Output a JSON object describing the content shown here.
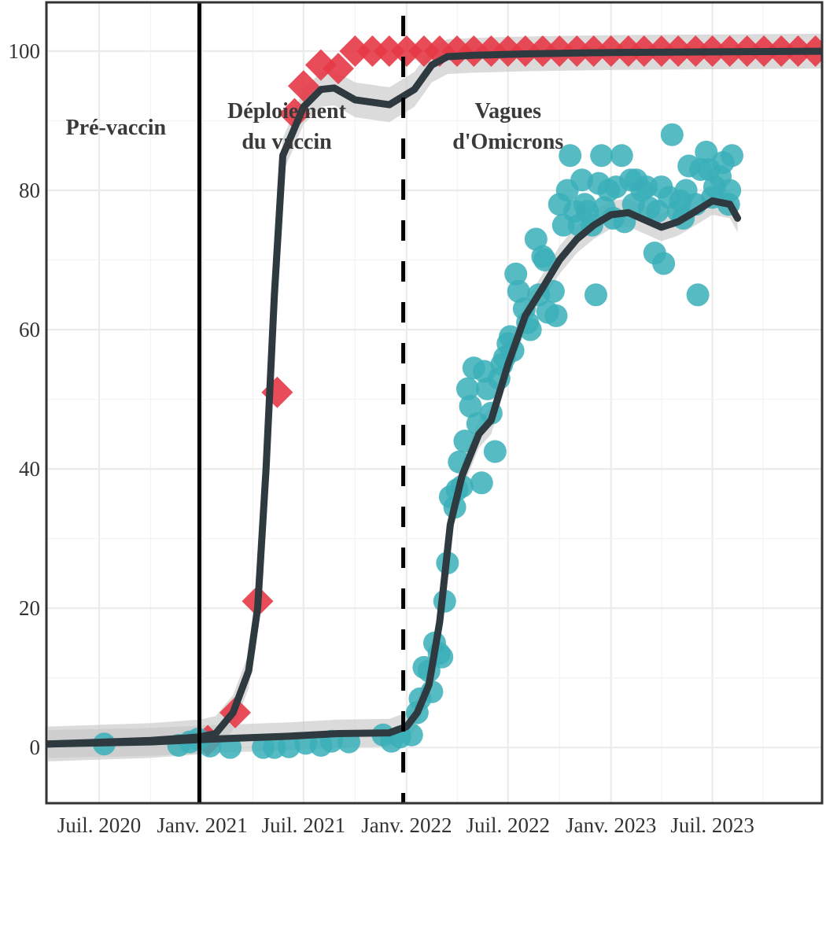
{
  "chart_data": {
    "type": "scatter",
    "title": "",
    "xlabel": "",
    "ylabel": "",
    "ylim": [
      -8,
      107
    ],
    "grid": true,
    "legend": "none",
    "x_tick_labels": [
      "Juil. 2020",
      "Janv. 2021",
      "Juil. 2021",
      "Janv. 2022",
      "Juil. 2022",
      "Janv. 2023",
      "Juil. 2023"
    ],
    "y_tick_labels": [
      "0",
      "20",
      "40",
      "60",
      "80",
      "100"
    ],
    "vertical_lines": [
      {
        "date": "2020-12-27",
        "style": "solid"
      },
      {
        "date": "2021-12-26",
        "style": "dashed"
      }
    ],
    "annotations": [
      {
        "lines": [
          "Pré-vaccin"
        ],
        "date": "2020-07-31",
        "y": 90
      },
      {
        "lines": [
          "Déploiement",
          "du vaccin"
        ],
        "date": "2021-06-01",
        "y": 90
      },
      {
        "lines": [
          "Vagues",
          "d'Omicrons"
        ],
        "date": "2022-07-01",
        "y": 90
      }
    ],
    "series": [
      {
        "marker": "diamond",
        "color": "#e63946",
        "points": [
          [
            "2021-01-11",
            1
          ],
          [
            "2021-03-01",
            5
          ],
          [
            "2021-04-10",
            21
          ],
          [
            "2021-05-15",
            51
          ],
          [
            "2021-06-15",
            91
          ],
          [
            "2021-07-01",
            95
          ],
          [
            "2021-08-01",
            98
          ],
          [
            "2021-09-01",
            97.5
          ],
          [
            "2021-10-01",
            100
          ],
          [
            "2021-11-01",
            100
          ],
          [
            "2021-12-01",
            100
          ],
          [
            "2022-01-01",
            100
          ],
          [
            "2022-02-01",
            100
          ],
          [
            "2022-03-01",
            100
          ],
          [
            "2022-04-01",
            100
          ],
          [
            "2022-05-01",
            100
          ],
          [
            "2022-06-01",
            100
          ],
          [
            "2022-07-01",
            100
          ],
          [
            "2022-08-01",
            100
          ],
          [
            "2022-09-01",
            100
          ],
          [
            "2022-10-01",
            100
          ],
          [
            "2022-11-01",
            100
          ],
          [
            "2022-12-01",
            100
          ],
          [
            "2023-01-01",
            100
          ],
          [
            "2023-02-01",
            100
          ],
          [
            "2023-03-01",
            100
          ],
          [
            "2023-04-01",
            100
          ],
          [
            "2023-05-01",
            100
          ],
          [
            "2023-06-01",
            100
          ],
          [
            "2023-07-01",
            100
          ],
          [
            "2023-08-01",
            100
          ],
          [
            "2023-09-01",
            100
          ],
          [
            "2023-10-01",
            100
          ],
          [
            "2023-11-01",
            100
          ],
          [
            "2023-12-01",
            100
          ],
          [
            "2024-01-01",
            100
          ]
        ],
        "trend": [
          [
            "2020-04-01",
            0.5
          ],
          [
            "2020-10-01",
            1
          ],
          [
            "2020-12-27",
            1.5
          ],
          [
            "2021-01-25",
            2
          ],
          [
            "2021-02-25",
            5
          ],
          [
            "2021-03-25",
            11
          ],
          [
            "2021-04-10",
            20
          ],
          [
            "2021-04-25",
            40
          ],
          [
            "2021-05-10",
            65
          ],
          [
            "2021-05-25",
            85
          ],
          [
            "2021-06-10",
            88
          ],
          [
            "2021-07-01",
            92
          ],
          [
            "2021-08-01",
            94.5
          ],
          [
            "2021-08-25",
            94.7
          ],
          [
            "2021-10-01",
            93
          ],
          [
            "2021-12-01",
            92.3
          ],
          [
            "2022-01-15",
            94.5
          ],
          [
            "2022-02-15",
            98
          ],
          [
            "2022-03-15",
            99.2
          ],
          [
            "2022-05-01",
            99.4
          ],
          [
            "2022-08-01",
            99.6
          ],
          [
            "2023-01-01",
            99.8
          ],
          [
            "2024-01-31",
            100
          ]
        ],
        "band_halfwidth": 2.5
      },
      {
        "marker": "circle",
        "color": "#3aafb9",
        "points": [
          [
            "2020-07-10",
            0.5
          ],
          [
            "2020-11-20",
            0.3
          ],
          [
            "2020-12-10",
            0.8
          ],
          [
            "2020-12-25",
            1.2
          ],
          [
            "2021-01-15",
            0.2
          ],
          [
            "2021-02-20",
            0
          ],
          [
            "2021-04-20",
            0
          ],
          [
            "2021-05-10",
            0
          ],
          [
            "2021-06-05",
            0.1
          ],
          [
            "2021-07-05",
            0.6
          ],
          [
            "2021-08-01",
            0.3
          ],
          [
            "2021-08-20",
            0.9
          ],
          [
            "2021-09-20",
            0.8
          ],
          [
            "2021-11-20",
            1.8
          ],
          [
            "2021-12-05",
            0.9
          ],
          [
            "2021-12-20",
            1.5
          ],
          [
            "2022-01-10",
            1.8
          ],
          [
            "2022-01-20",
            5
          ],
          [
            "2022-01-25",
            7
          ],
          [
            "2022-02-01",
            11.5
          ],
          [
            "2022-02-10",
            11
          ],
          [
            "2022-02-15",
            8
          ],
          [
            "2022-02-20",
            15
          ],
          [
            "2022-02-28",
            13.5
          ],
          [
            "2022-03-05",
            13
          ],
          [
            "2022-03-10",
            21
          ],
          [
            "2022-03-15",
            26.5
          ],
          [
            "2022-03-20",
            36
          ],
          [
            "2022-03-28",
            34.5
          ],
          [
            "2022-04-01",
            37
          ],
          [
            "2022-04-05",
            41
          ],
          [
            "2022-04-10",
            37.5
          ],
          [
            "2022-04-15",
            44
          ],
          [
            "2022-04-20",
            51.5
          ],
          [
            "2022-04-25",
            49
          ],
          [
            "2022-05-01",
            54.5
          ],
          [
            "2022-05-08",
            46.5
          ],
          [
            "2022-05-15",
            38
          ],
          [
            "2022-05-20",
            54
          ],
          [
            "2022-05-25",
            51.5
          ],
          [
            "2022-06-01",
            48
          ],
          [
            "2022-06-08",
            42.5
          ],
          [
            "2022-06-15",
            53
          ],
          [
            "2022-06-20",
            55
          ],
          [
            "2022-06-25",
            56
          ],
          [
            "2022-07-01",
            58
          ],
          [
            "2022-07-05",
            59
          ],
          [
            "2022-07-10",
            57
          ],
          [
            "2022-07-15",
            68
          ],
          [
            "2022-07-20",
            65.5
          ],
          [
            "2022-07-30",
            63
          ],
          [
            "2022-08-05",
            61
          ],
          [
            "2022-08-10",
            60
          ],
          [
            "2022-08-20",
            73
          ],
          [
            "2022-08-25",
            65
          ],
          [
            "2022-09-01",
            70.5
          ],
          [
            "2022-09-05",
            70
          ],
          [
            "2022-09-10",
            62.5
          ],
          [
            "2022-09-20",
            65.5
          ],
          [
            "2022-09-25",
            62
          ],
          [
            "2022-10-01",
            78
          ],
          [
            "2022-10-08",
            75
          ],
          [
            "2022-10-15",
            80
          ],
          [
            "2022-10-20",
            85
          ],
          [
            "2022-10-28",
            77
          ],
          [
            "2022-11-05",
            75
          ],
          [
            "2022-11-10",
            81.5
          ],
          [
            "2022-11-15",
            78
          ],
          [
            "2022-11-20",
            77
          ],
          [
            "2022-11-28",
            75
          ],
          [
            "2022-12-05",
            65
          ],
          [
            "2022-12-10",
            81
          ],
          [
            "2022-12-15",
            85
          ],
          [
            "2022-12-20",
            77.5
          ],
          [
            "2022-12-28",
            80
          ],
          [
            "2023-01-05",
            76
          ],
          [
            "2023-01-10",
            80.5
          ],
          [
            "2023-01-20",
            85
          ],
          [
            "2023-01-25",
            75.5
          ],
          [
            "2023-02-05",
            81.5
          ],
          [
            "2023-02-10",
            78
          ],
          [
            "2023-02-15",
            81.5
          ],
          [
            "2023-02-25",
            80
          ],
          [
            "2023-03-05",
            80.5
          ],
          [
            "2023-03-10",
            77.5
          ],
          [
            "2023-03-20",
            71
          ],
          [
            "2023-03-25",
            77
          ],
          [
            "2023-04-01",
            80.5
          ],
          [
            "2023-04-05",
            69.5
          ],
          [
            "2023-04-15",
            79
          ],
          [
            "2023-04-20",
            88
          ],
          [
            "2023-05-01",
            77
          ],
          [
            "2023-05-05",
            78.5
          ],
          [
            "2023-05-10",
            76
          ],
          [
            "2023-05-15",
            80
          ],
          [
            "2023-05-20",
            83.5
          ],
          [
            "2023-06-01",
            78
          ],
          [
            "2023-06-05",
            65
          ],
          [
            "2023-06-10",
            83
          ],
          [
            "2023-06-20",
            85.5
          ],
          [
            "2023-06-25",
            83
          ],
          [
            "2023-07-01",
            79
          ],
          [
            "2023-07-05",
            80.5
          ],
          [
            "2023-07-15",
            82
          ],
          [
            "2023-07-20",
            84
          ],
          [
            "2023-07-30",
            78
          ],
          [
            "2023-08-01",
            80
          ],
          [
            "2023-08-05",
            85
          ]
        ],
        "trend": [
          [
            "2020-04-01",
            0.5
          ],
          [
            "2020-10-01",
            0.8
          ],
          [
            "2021-01-15",
            1.2
          ],
          [
            "2021-06-01",
            1.6
          ],
          [
            "2021-09-01",
            2
          ],
          [
            "2021-12-01",
            2.1
          ],
          [
            "2022-01-01",
            3
          ],
          [
            "2022-01-20",
            5
          ],
          [
            "2022-02-10",
            9
          ],
          [
            "2022-03-01",
            18
          ],
          [
            "2022-03-20",
            32
          ],
          [
            "2022-04-10",
            39
          ],
          [
            "2022-05-10",
            45
          ],
          [
            "2022-06-01",
            47
          ],
          [
            "2022-07-01",
            55
          ],
          [
            "2022-08-01",
            62
          ],
          [
            "2022-09-01",
            66
          ],
          [
            "2022-10-01",
            70
          ],
          [
            "2022-11-01",
            73
          ],
          [
            "2022-12-01",
            75
          ],
          [
            "2023-01-01",
            76.5
          ],
          [
            "2023-02-01",
            76.8
          ],
          [
            "2023-03-01",
            75.8
          ],
          [
            "2023-04-01",
            74.7
          ],
          [
            "2023-05-01",
            75.5
          ],
          [
            "2023-06-01",
            77
          ],
          [
            "2023-07-01",
            78.5
          ],
          [
            "2023-08-01",
            78
          ],
          [
            "2023-08-15",
            76
          ]
        ],
        "band_halfwidth": 2
      }
    ]
  }
}
